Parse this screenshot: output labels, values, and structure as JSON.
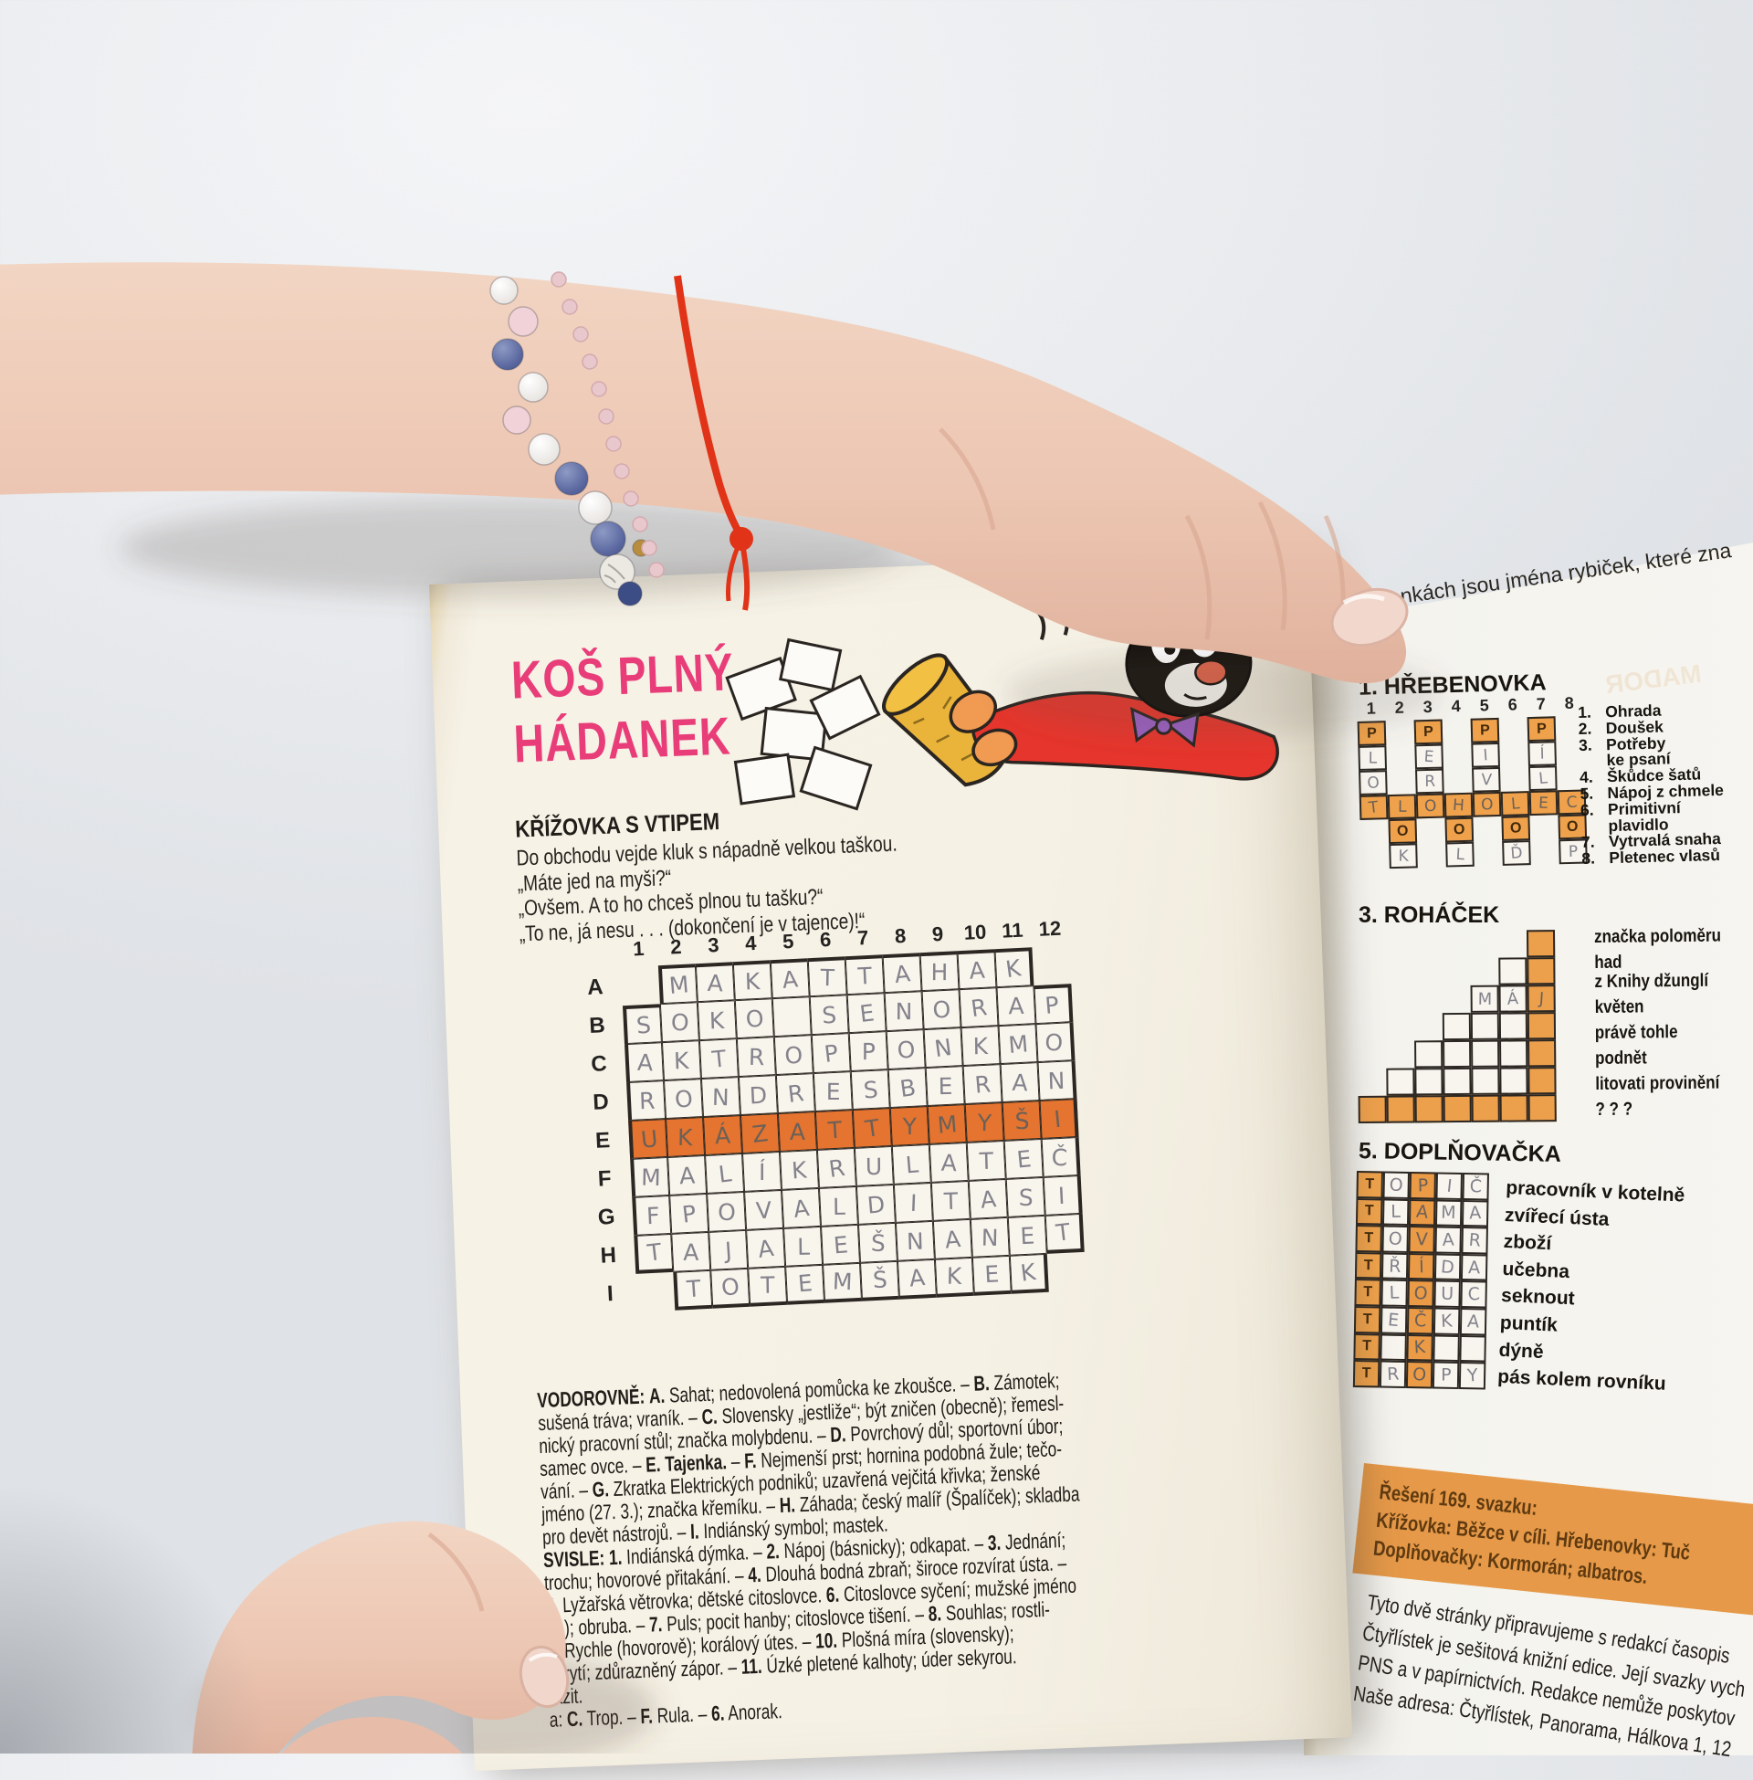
{
  "colors": {
    "accent_pink": "#e83d79",
    "puzzle_orange": "#efa24b",
    "tajenka_orange": "#e4742f",
    "solution_box_bg": "#e69948",
    "pencil_gray": "#84828c"
  },
  "left_page": {
    "title": {
      "line1": "KOŠ PLNÝ",
      "line2": "HÁDANEK"
    },
    "krizovka": {
      "heading": "KŘÍŽOVKA S VTIPEM",
      "joke_lines": [
        "Do obchodu vejde kluk s nápadně velkou taškou.",
        "„Máte jed na myši?“",
        "„Ovšem. A to ho chceš plnou tu tašku?“",
        "„To ne, já nesu . . . (dokončení je v tajence)!“"
      ],
      "col_numbers": [
        "1",
        "2",
        "3",
        "4",
        "5",
        "6",
        "7",
        "8",
        "9",
        "10",
        "11",
        "12"
      ],
      "rows": [
        {
          "label": "A",
          "start": 2,
          "end": 11,
          "letters": [
            "M",
            "A",
            "K",
            "A",
            "T",
            "T",
            "A",
            "H",
            "A",
            "K"
          ]
        },
        {
          "label": "B",
          "start": 1,
          "end": 12,
          "letters": [
            "S",
            "O",
            "K",
            "O",
            "",
            "S",
            "E",
            "N",
            "O",
            "R",
            "A",
            "P"
          ]
        },
        {
          "label": "C",
          "start": 1,
          "end": 12,
          "letters": [
            "A",
            "K",
            "T",
            "R",
            "O",
            "P",
            "P",
            "O",
            "N",
            "K",
            "M",
            "O"
          ]
        },
        {
          "label": "D",
          "start": 1,
          "end": 12,
          "letters": [
            "R",
            "O",
            "N",
            "D",
            "R",
            "E",
            "S",
            "B",
            "E",
            "R",
            "A",
            "N"
          ]
        },
        {
          "label": "E",
          "start": 1,
          "end": 12,
          "highlight": true,
          "letters": [
            "U",
            "K",
            "Á",
            "Z",
            "A",
            "T",
            "T",
            "Y",
            "M",
            "Y",
            "Š",
            "I"
          ]
        },
        {
          "label": "F",
          "start": 1,
          "end": 12,
          "letters": [
            "M",
            "A",
            "L",
            "Í",
            "K",
            "R",
            "U",
            "L",
            "A",
            "T",
            "E",
            "Č"
          ]
        },
        {
          "label": "G",
          "start": 1,
          "end": 12,
          "letters": [
            "F",
            "P",
            "O",
            "V",
            "A",
            "L",
            "D",
            "I",
            "T",
            "A",
            "S",
            "I"
          ]
        },
        {
          "label": "H",
          "start": 1,
          "end": 12,
          "letters": [
            "T",
            "A",
            "J",
            "A",
            "L",
            "E",
            "Š",
            "N",
            "A",
            "N",
            "E",
            "T"
          ]
        },
        {
          "label": "I",
          "start": 2,
          "end": 11,
          "letters": [
            "T",
            "O",
            "T",
            "E",
            "M",
            "Š",
            "A",
            "K",
            "E",
            "K"
          ]
        }
      ],
      "clue_lines": [
        "VODOROVNĚ: A. Sahat; nedovolená pomůcka ke zkoušce. – B. Zámotek;",
        "sušená tráva; vraník. – C. Slovensky „jestliže“; být zničen (obecně); řemesl-",
        "nický pracovní stůl; značka molybdenu. – D. Povrchový důl; sportovní úbor;",
        "samec ovce. – E. Tajenka. – F. Nejmenší prst; hornina podobná žule; tečo-",
        "vání. – G. Zkratka Elektrických podniků; uzavřená vejčitá křivka; ženské",
        "jméno (27. 3.); značka křemíku. – H. Záhada; český malíř (Špalíček); skladba",
        "pro devět nástrojů. – I. Indiánský symbol; mastek.",
        "SVISLE: 1. Indiánská dýmka. – 2. Nápoj (básnicky); odkapat. – 3. Jednání;",
        "trochu; hovorové přitakání. – 4. Dlouhá bodná zbraň; široce rozvírat ústa. –",
        "5. Lyžařská větrovka; dětské citoslovce. 6. Citoslovce syčení; mužské jméno",
        "(2.); obruba. – 7. Puls; pocit hanby; citoslovce tišení. – 8. Souhlas; rostli-",
        "9. Rychle (hovorově); korálový útes. – 10. Plošná míra (slovensky);",
        "ukrytí; zdůrazněný zápor. – 11. Úzké pletené kalhoty; úder sekyrou.",
        "razit.",
        "a: C. Trop. – F. Rula. – 6. Anorak."
      ]
    }
  },
  "right_page": {
    "top_partial": "nkách jsou jména rybiček, které zna",
    "ghost_text": "MADOR",
    "hrebenovka": {
      "heading": "1. HŘEBENOVKA",
      "col_numbers": [
        "1",
        "2",
        "3",
        "4",
        "5",
        "6",
        "7",
        "8"
      ],
      "printed_top": "P",
      "printed_mid": "O",
      "odd_col_letters": [
        [
          "L",
          "O"
        ],
        [
          "E",
          "R"
        ],
        [
          "I",
          "V"
        ],
        [
          "Í",
          "L"
        ]
      ],
      "middle_letters": [
        "T",
        "L",
        "O",
        "H",
        "O",
        "L",
        "E",
        "C"
      ],
      "bottom_letters": [
        "K",
        "L",
        "Ď",
        "P"
      ],
      "clues": [
        {
          "num": "1.",
          "lines": [
            "Ohrada"
          ]
        },
        {
          "num": "2.",
          "lines": [
            "Doušek"
          ]
        },
        {
          "num": "3.",
          "lines": [
            "Potřeby",
            "ke psaní"
          ]
        },
        {
          "num": "4.",
          "lines": [
            "Škůdce šatů"
          ]
        },
        {
          "num": "5.",
          "lines": [
            "Nápoj z chmele"
          ]
        },
        {
          "num": "6.",
          "lines": [
            "Primitivní",
            "plavidlo"
          ]
        },
        {
          "num": "7.",
          "lines": [
            "Vytrvalá snaha"
          ]
        },
        {
          "num": "8.",
          "lines": [
            "Pletenec vlasů"
          ]
        }
      ]
    },
    "rohacek": {
      "heading": "3. ROHÁČEK",
      "written_row3": [
        "M",
        "Á",
        "J"
      ],
      "clues": [
        {
          "lines": [
            "značka poloměru"
          ]
        },
        {
          "lines": [
            "had",
            "z Knihy džunglí"
          ]
        },
        {
          "lines": [
            "květen"
          ]
        },
        {
          "lines": [
            "právě tohle"
          ]
        },
        {
          "lines": [
            "podnět"
          ]
        },
        {
          "lines": [
            "litovati provinění"
          ]
        },
        {
          "lines": [
            "? ? ?"
          ]
        }
      ]
    },
    "doplnovacka": {
      "heading": "5. DOPLŇOVAČKA",
      "printed_first": "T",
      "rows": [
        [
          "O",
          "P",
          "I",
          "Č"
        ],
        [
          "L",
          "A",
          "M",
          "A"
        ],
        [
          "O",
          "V",
          "A",
          "R"
        ],
        [
          "Ř",
          "Í",
          "D",
          "A"
        ],
        [
          "L",
          "O",
          "U",
          "C"
        ],
        [
          "E",
          "Č",
          "K",
          "A"
        ],
        [
          "",
          "K",
          "",
          ""
        ],
        [
          "R",
          "O",
          "P",
          "Y"
        ]
      ],
      "clues": [
        "pracovník v kotelně",
        "zvířecí ústa",
        "zboží",
        "učebna",
        "seknout",
        "puntík",
        "dýně",
        "pás kolem rovníku"
      ]
    },
    "solution_box": {
      "line1": "Řešení 169. svazku:",
      "line2": "Křížovka: Běžce v cíli. Hřebenovky: Tuč",
      "line3": "Doplňovačky: Kormorán; albatros."
    },
    "footer_lines": [
      "Tyto dvě stránky připravujeme s redakcí časopis",
      "Čtyřlístek je sešitová knižní edice. Její svazky vych",
      "PNS a v papírnictvích. Redakce nemůže poskytov",
      "Naše adresa: Čtyřlístek, Panorama, Hálkova 1, 12"
    ]
  }
}
